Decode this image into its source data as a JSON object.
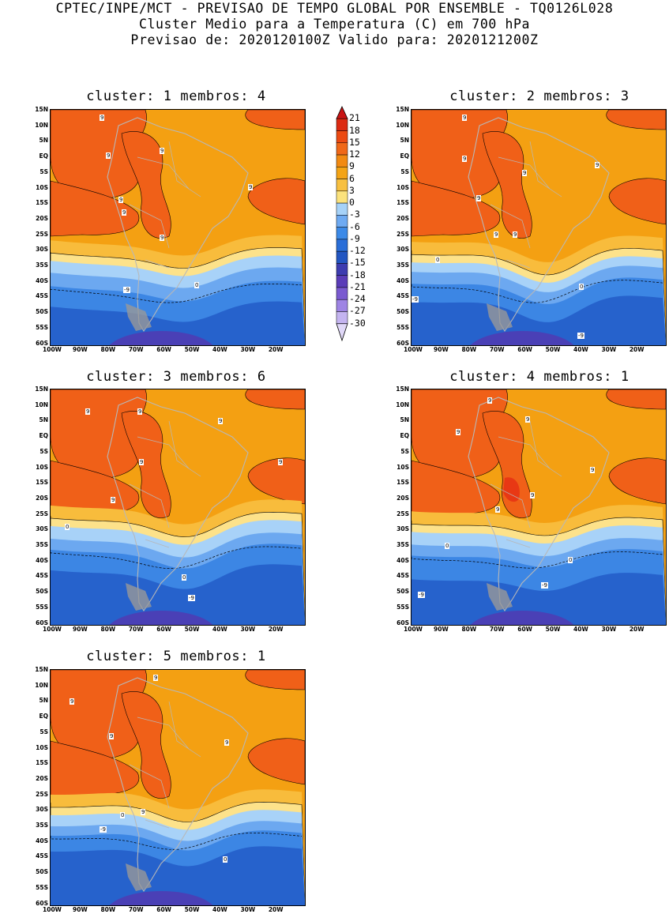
{
  "header": {
    "line1": "CPTEC/INPE/MCT - PREVISAO DE TEMPO GLOBAL POR ENSEMBLE - TQ0126L028",
    "line2": "Cluster Medio para a Temperatura (C) em 700 hPa",
    "line3": "Previsao de: 2020120100Z   Valido para: 2020121200Z"
  },
  "lat_labels": [
    "15N",
    "10N",
    "5N",
    "EQ",
    "5S",
    "10S",
    "15S",
    "20S",
    "25S",
    "30S",
    "35S",
    "40S",
    "45S",
    "50S",
    "55S",
    "60S"
  ],
  "lon_labels": [
    "100W",
    "90W",
    "80W",
    "70W",
    "60W",
    "50W",
    "40W",
    "30W",
    "20W"
  ],
  "panels": [
    {
      "title": "cluster: 1   membros: 4",
      "contour_labels": [
        "9",
        "9",
        "9",
        "9",
        "9",
        "9",
        "9",
        "0",
        "-9"
      ]
    },
    {
      "title": "cluster: 2   membros: 3",
      "contour_labels": [
        "9",
        "9",
        "9",
        "9",
        "9",
        "9",
        "9",
        "0",
        "0",
        "-9",
        "-9"
      ]
    },
    {
      "title": "cluster: 3   membros: 6",
      "contour_labels": [
        "9",
        "9",
        "9",
        "9",
        "9",
        "9",
        "0",
        "0",
        "-9"
      ]
    },
    {
      "title": "cluster: 4   membros: 1",
      "contour_labels": [
        "9",
        "9",
        "9",
        "9",
        "9",
        "9",
        "0",
        "0",
        "-9",
        "-9"
      ]
    },
    {
      "title": "cluster: 5   membros: 1",
      "contour_labels": [
        "9",
        "9",
        "9",
        "9",
        "9",
        "0",
        "0",
        "-9"
      ]
    }
  ],
  "colorbar": {
    "labels": [
      "21",
      "18",
      "15",
      "12",
      "9",
      "6",
      "3",
      "0",
      "-3",
      "-6",
      "-9",
      "-12",
      "-15",
      "-18",
      "-21",
      "-24",
      "-27",
      "-30"
    ],
    "colors": [
      "#c81414",
      "#dc2a12",
      "#ec4a12",
      "#f06818",
      "#f28a12",
      "#f4a416",
      "#f8c040",
      "#fbe27c",
      "#a6d2f8",
      "#6eaaf2",
      "#3c8ae8",
      "#2a6ed8",
      "#2256c2",
      "#3d3cb0",
      "#5a3cb8",
      "#7a5ad0",
      "#9e84e4",
      "#c4b4f0",
      "#e0d8f8"
    ]
  },
  "palette": {
    "warm_strong": "#f06018",
    "warm_hot": "#e83814",
    "warm": "#f4a012",
    "mid": "#f8bc3c",
    "mild": "#fde28a",
    "cool1": "#a8d2f8",
    "cool2": "#6ca8f0",
    "cold": "#3c86e4",
    "colder": "#2662cc",
    "coldest": "#4a40b6",
    "land": "#b8b8b8"
  }
}
